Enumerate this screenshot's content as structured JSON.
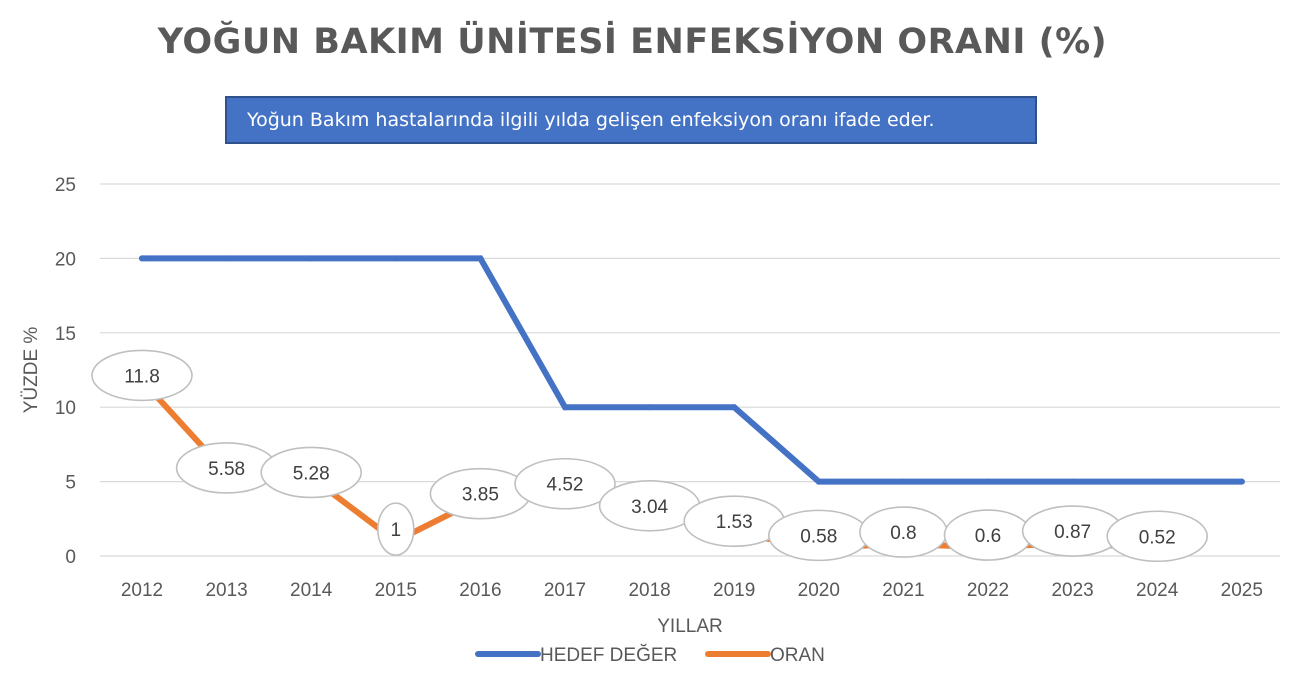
{
  "chart_data": {
    "type": "line",
    "title": "YOĞUN BAKIM ÜNİTESİ ENFEKSİYON ORANI (%)",
    "subtitle": "Yoğun Bakım hastalarında ilgili yılda gelişen enfeksiyon oranı ifade eder.",
    "xlabel": "YILLAR",
    "ylabel": "YÜZDE %",
    "ylim": [
      0,
      25
    ],
    "y_ticks": [
      "0",
      "5",
      "10",
      "15",
      "20",
      "25"
    ],
    "categories": [
      "2012",
      "2013",
      "2014",
      "2015",
      "2016",
      "2017",
      "2018",
      "2019",
      "2020",
      "2021",
      "2022",
      "2023",
      "2024",
      "2025"
    ],
    "grid": true,
    "legend_position": "bottom",
    "series": [
      {
        "name": "HEDEF DEĞER",
        "color": "#4472c4",
        "values": [
          20,
          20,
          20,
          20,
          20,
          10,
          10,
          10,
          5,
          5,
          5,
          5,
          5,
          5
        ]
      },
      {
        "name": "ORAN",
        "color": "#ed7d31",
        "values": [
          11.8,
          5.58,
          5.28,
          1,
          3.85,
          4.52,
          3.04,
          1.53,
          0.58,
          0.8,
          0.6,
          0.87,
          0.52,
          null
        ],
        "data_labels": [
          "11.8",
          "5.58",
          "5.28",
          "1",
          "3.85",
          "4.52",
          "3.04",
          "1.53",
          "0.58",
          "0.8",
          "0.6",
          "0.87",
          "0.52"
        ]
      }
    ]
  }
}
